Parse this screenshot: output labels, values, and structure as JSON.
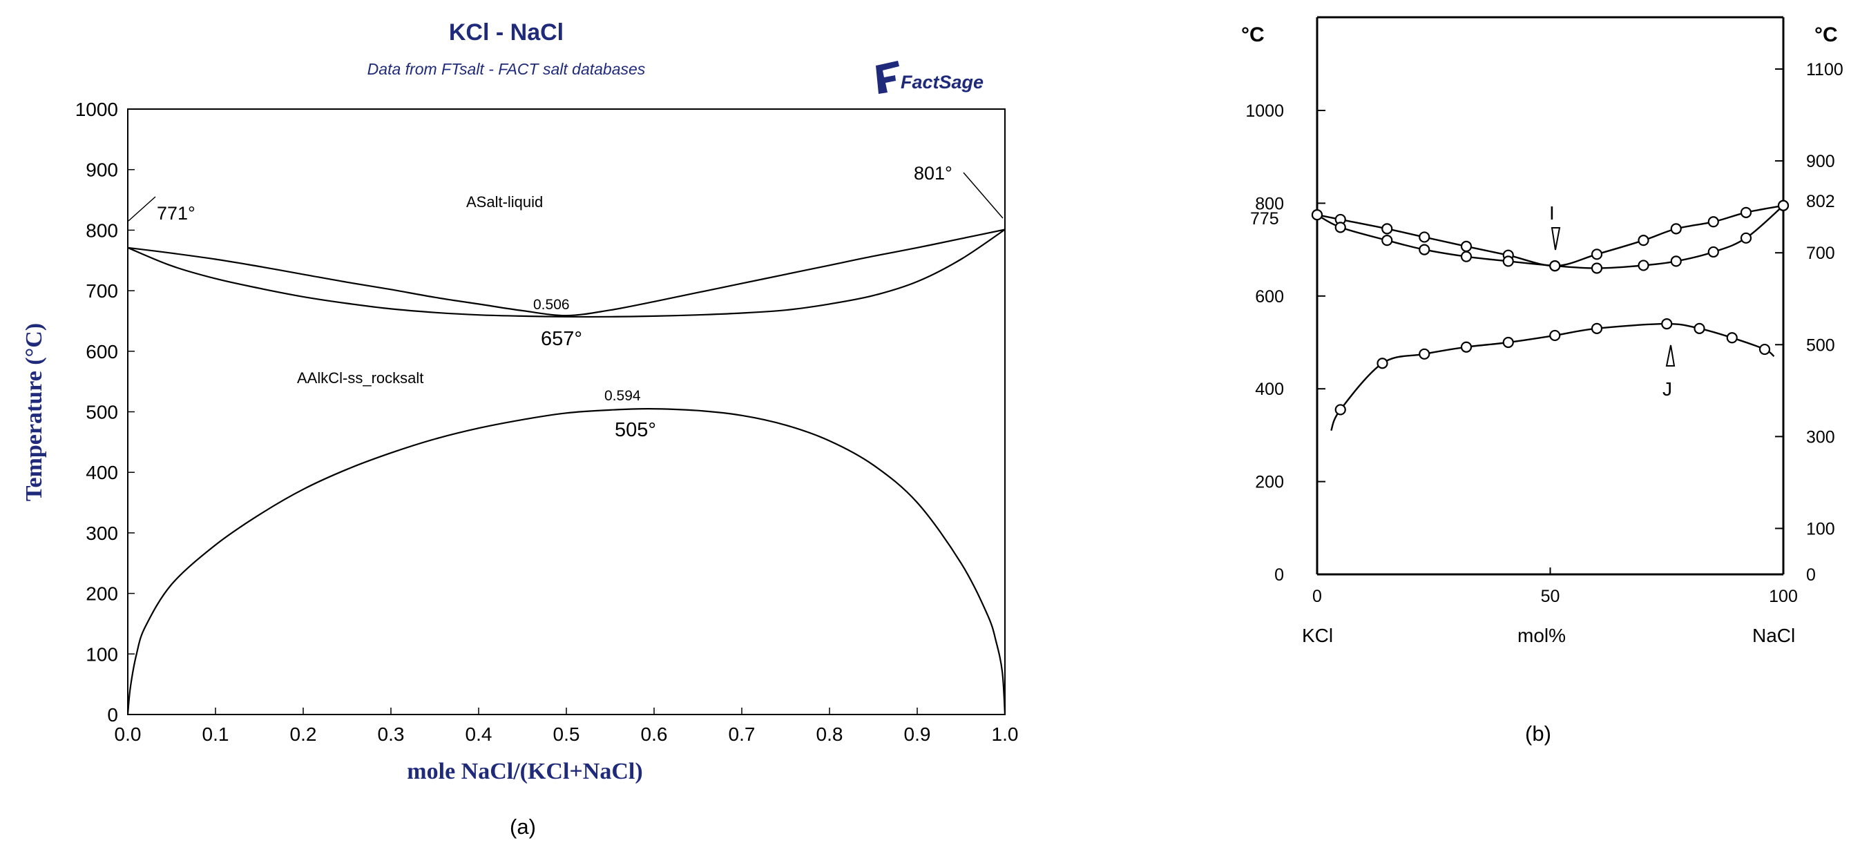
{
  "panel_a": {
    "title": "KCl - NaCl",
    "subtitle": "Data from FTsalt - FACT salt databases",
    "logo_text": "FactSage",
    "caption": "(a)",
    "title_color": "#1f2a7a",
    "xlabel": "mole NaCl/(KCl+NaCl)",
    "ylabel": "Temperature (°C)",
    "region_labels": {
      "liquid": "ASalt-liquid",
      "solid": "AAlkCl-ss_rocksalt"
    },
    "annotations": {
      "kcl_melt": "771°",
      "nacl_melt": "801°",
      "liquidus_min_x": "0.506",
      "liquidus_min_t": "657°",
      "gap_max_x": "0.594",
      "gap_max_t": "505°"
    }
  },
  "panel_b": {
    "caption": "(b)",
    "left_unit": "°C",
    "right_unit": "°C",
    "xlabel": "mol%",
    "x_left_label": "KCl",
    "x_right_label": "NaCl",
    "left_extra_labels": {
      "775": "775"
    },
    "right_extra_labels": {
      "802": "802"
    },
    "marker_labels": {
      "I": "I",
      "J": "J"
    }
  },
  "chart_data": [
    {
      "type": "line",
      "title": "KCl - NaCl",
      "subtitle": "Data from FTsalt - FACT salt databases",
      "xlabel": "mole NaCl/(KCl+NaCl)",
      "ylabel": "Temperature (°C)",
      "xlim": [
        0.0,
        1.0
      ],
      "ylim": [
        0,
        1000
      ],
      "xticks": [
        "0.0",
        "0.1",
        "0.2",
        "0.3",
        "0.4",
        "0.5",
        "0.6",
        "0.7",
        "0.8",
        "0.9",
        "1.0"
      ],
      "yticks": [
        "0",
        "100",
        "200",
        "300",
        "400",
        "500",
        "600",
        "700",
        "800",
        "900",
        "1000"
      ],
      "grid": false,
      "series": [
        {
          "x": [
            0.0,
            0.05,
            0.1,
            0.15,
            0.2,
            0.25,
            0.3,
            0.35,
            0.4,
            0.45,
            0.5,
            0.55,
            0.6,
            0.65,
            0.7,
            0.75,
            0.8,
            0.85,
            0.9,
            0.95,
            1.0
          ],
          "y": [
            771,
            762,
            752,
            740,
            727,
            714,
            702,
            689,
            678,
            667,
            659,
            668,
            682,
            697,
            712,
            727,
            742,
            757,
            771,
            786,
            801
          ]
        },
        {
          "x": [
            0.0,
            0.05,
            0.1,
            0.15,
            0.2,
            0.25,
            0.3,
            0.35,
            0.4,
            0.45,
            0.5,
            0.55,
            0.6,
            0.65,
            0.7,
            0.75,
            0.8,
            0.85,
            0.9,
            0.95,
            1.0
          ],
          "y": [
            771,
            741,
            720,
            704,
            690,
            679,
            670,
            664,
            660,
            658,
            657,
            657,
            658,
            660,
            663,
            668,
            678,
            692,
            715,
            752,
            801
          ]
        },
        {
          "x": [
            0.0,
            0.003,
            0.01,
            0.02,
            0.05,
            0.1,
            0.15,
            0.2,
            0.25,
            0.3,
            0.35,
            0.4,
            0.45,
            0.5,
            0.55,
            0.594,
            0.65,
            0.7,
            0.75,
            0.8,
            0.85,
            0.9,
            0.95,
            0.98,
            0.99,
            0.997,
            1.0
          ],
          "y": [
            0,
            45,
            100,
            145,
            215,
            280,
            330,
            372,
            405,
            432,
            455,
            473,
            487,
            498,
            503,
            505,
            502,
            494,
            478,
            452,
            412,
            350,
            250,
            165,
            120,
            70,
            0
          ]
        }
      ],
      "annotations": [
        "771°",
        "801°",
        "0.506",
        "657°",
        "0.594",
        "505°",
        "ASalt-liquid",
        "AAlkCl-ss_rocksalt"
      ]
    },
    {
      "type": "scatter",
      "xlabel": "mol%",
      "ylim_left": [
        0,
        1000
      ],
      "ylim_right": [
        0,
        1100
      ],
      "xlim": [
        0,
        100
      ],
      "xticks": [
        "0",
        "50",
        "100"
      ],
      "yticks_left": [
        "0",
        "200",
        "400",
        "600",
        "800",
        "1000"
      ],
      "yticks_right": [
        "0",
        "100",
        "300",
        "500",
        "700",
        "900",
        "1100"
      ],
      "grid": false,
      "series": [
        {
          "x": [
            0,
            5,
            15,
            23,
            32,
            41,
            51,
            60,
            70,
            77,
            85,
            92,
            100
          ],
          "y": [
            775,
            765,
            745,
            727,
            707,
            688,
            665,
            690,
            720,
            745,
            760,
            780,
            795
          ]
        },
        {
          "x": [
            0,
            5,
            15,
            23,
            32,
            41,
            51,
            60,
            70,
            77,
            85,
            92,
            100
          ],
          "y": [
            775,
            748,
            720,
            700,
            685,
            675,
            665,
            660,
            666,
            675,
            695,
            725,
            795
          ]
        },
        {
          "x": [
            5,
            14,
            23,
            32,
            41,
            51,
            60,
            75,
            82,
            89,
            96
          ],
          "y": [
            355,
            455,
            475,
            490,
            500,
            515,
            530,
            540,
            530,
            510,
            485
          ]
        }
      ],
      "annotations": [
        "775",
        "802",
        "I",
        "J"
      ]
    }
  ]
}
